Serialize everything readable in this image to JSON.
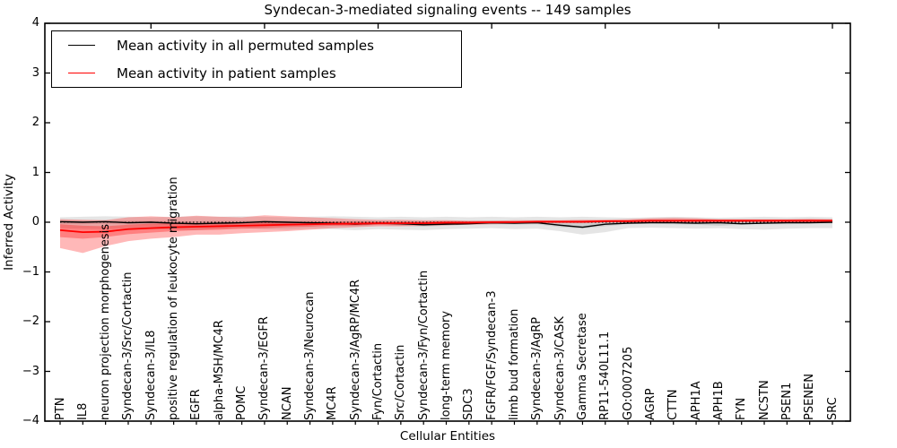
{
  "title": "Syndecan-3-mediated signaling events -- 149 samples",
  "legend": {
    "items": [
      {
        "label": "Mean activity in all permuted samples",
        "color": "#000000"
      },
      {
        "label": "Mean activity in patient samples",
        "color": "#ff0000"
      }
    ]
  },
  "chart_data": {
    "type": "line",
    "title": "Syndecan-3-mediated signaling events -- 149 samples",
    "xlabel": "Cellular Entities",
    "ylabel": "Inferred Activity",
    "ylim": [
      -4,
      4
    ],
    "yticks": [
      4,
      3,
      2,
      1,
      0,
      -1,
      -2,
      -3,
      -4
    ],
    "grid": false,
    "legend_position": "upper left",
    "zero_line": true,
    "colors": {
      "permuted": "#000000",
      "patient": "#ff0000",
      "permuted_band": "rgba(0,0,0,0.10)",
      "patient_band": "rgba(255,0,0,0.28)"
    },
    "categories": [
      "PTN",
      "IL8",
      "neuron projection morphogenesis",
      "Syndecan-3/Src/Cortactin",
      "Syndecan-3/IL8",
      "positive regulation of leukocyte migration",
      "EGFR",
      "alpha-MSH/MC4R",
      "POMC",
      "Syndecan-3/EGFR",
      "NCAN",
      "Syndecan-3/Neurocan",
      "MC4R",
      "Syndecan-3/AgRP/MC4R",
      "Fyn/Cortactin",
      "Src/Cortactin",
      "Syndecan-3/Fyn/Cortactin",
      "long-term memory",
      "SDC3",
      "FGFR/FGF/Syndecan-3",
      "limb bud formation",
      "Syndecan-3/AgRP",
      "Syndecan-3/CASK",
      "Gamma Secretase",
      "RP11-540L11.1",
      "GO:0007205",
      "AGRP",
      "CTTN",
      "APH1A",
      "APH1B",
      "FYN",
      "NCSTN",
      "PSEN1",
      "PSENEN",
      "SRC"
    ],
    "series": [
      {
        "name": "Mean activity in all permuted samples",
        "color": "#000000",
        "values": [
          0.01,
          0.0,
          0.01,
          -0.01,
          0.0,
          -0.02,
          -0.03,
          -0.02,
          -0.01,
          0.01,
          0.0,
          -0.01,
          -0.02,
          -0.04,
          -0.02,
          -0.03,
          -0.05,
          -0.04,
          -0.03,
          -0.01,
          -0.02,
          -0.01,
          -0.06,
          -0.1,
          -0.04,
          -0.02,
          -0.01,
          -0.01,
          -0.02,
          -0.01,
          -0.03,
          -0.02,
          -0.01,
          -0.01,
          0.0
        ]
      },
      {
        "name": "Mean activity in patient samples",
        "color": "#ff0000",
        "values": [
          -0.16,
          -0.2,
          -0.19,
          -0.14,
          -0.12,
          -0.1,
          -0.09,
          -0.08,
          -0.07,
          -0.06,
          -0.05,
          -0.04,
          -0.03,
          -0.03,
          -0.02,
          -0.02,
          -0.02,
          -0.01,
          -0.01,
          0.0,
          0.0,
          0.01,
          0.01,
          0.01,
          0.02,
          0.02,
          0.03,
          0.03,
          0.03,
          0.03,
          0.03,
          0.03,
          0.03,
          0.03,
          0.03
        ]
      }
    ],
    "bands": [
      {
        "name": "permuted-outer",
        "color": "rgba(0,0,0,0.10)",
        "high": [
          0.1,
          0.11,
          0.12,
          0.11,
          0.1,
          0.11,
          0.12,
          0.11,
          0.12,
          0.11,
          0.1,
          0.11,
          0.12,
          0.11,
          0.1,
          0.11,
          0.1,
          0.11,
          0.1,
          0.11,
          0.1,
          0.11,
          0.1,
          0.11,
          0.1,
          0.09,
          0.1,
          0.11,
          0.1,
          0.09,
          0.1,
          0.11,
          0.1,
          0.11,
          0.1
        ],
        "low": [
          -0.12,
          -0.13,
          -0.14,
          -0.12,
          -0.13,
          -0.15,
          -0.16,
          -0.13,
          -0.12,
          -0.14,
          -0.15,
          -0.13,
          -0.14,
          -0.16,
          -0.14,
          -0.15,
          -0.16,
          -0.14,
          -0.13,
          -0.12,
          -0.14,
          -0.13,
          -0.18,
          -0.25,
          -0.2,
          -0.12,
          -0.11,
          -0.12,
          -0.13,
          -0.12,
          -0.14,
          -0.15,
          -0.13,
          -0.12,
          -0.12
        ]
      },
      {
        "name": "permuted-inner",
        "color": "rgba(0,0,0,0.10)",
        "high": [
          0.04,
          0.03,
          0.04,
          0.03,
          0.03,
          0.02,
          0.02,
          0.03,
          0.03,
          0.04,
          0.03,
          0.03,
          0.02,
          0.02,
          0.02,
          0.02,
          0.02,
          0.02,
          0.02,
          0.03,
          0.02,
          0.03,
          0.02,
          0.02,
          0.02,
          0.02,
          0.03,
          0.03,
          0.02,
          0.03,
          0.02,
          0.02,
          0.03,
          0.03,
          0.03
        ],
        "low": [
          -0.03,
          -0.04,
          -0.03,
          -0.04,
          -0.04,
          -0.05,
          -0.06,
          -0.05,
          -0.04,
          -0.03,
          -0.04,
          -0.04,
          -0.06,
          -0.08,
          -0.05,
          -0.07,
          -0.09,
          -0.07,
          -0.05,
          -0.04,
          -0.05,
          -0.04,
          -0.1,
          -0.13,
          -0.08,
          -0.04,
          -0.03,
          -0.04,
          -0.05,
          -0.07,
          -0.05,
          -0.04,
          -0.04,
          -0.03,
          -0.03
        ]
      },
      {
        "name": "patient-outer",
        "color": "rgba(255,0,0,0.28)",
        "high": [
          0.06,
          0.05,
          0.04,
          0.1,
          0.12,
          0.1,
          0.13,
          0.11,
          0.1,
          0.14,
          0.12,
          0.1,
          0.08,
          0.06,
          0.05,
          0.05,
          0.04,
          0.04,
          0.03,
          0.03,
          0.04,
          0.04,
          0.04,
          0.05,
          0.05,
          0.06,
          0.08,
          0.09,
          0.08,
          0.06,
          0.06,
          0.06,
          0.06,
          0.07,
          0.06
        ],
        "low": [
          -0.52,
          -0.62,
          -0.48,
          -0.38,
          -0.33,
          -0.3,
          -0.25,
          -0.25,
          -0.22,
          -0.2,
          -0.18,
          -0.15,
          -0.12,
          -0.1,
          -0.08,
          -0.08,
          -0.07,
          -0.06,
          -0.05,
          -0.04,
          -0.03,
          -0.02,
          -0.02,
          -0.02,
          -0.01,
          -0.01,
          -0.01,
          0.0,
          0.0,
          0.0,
          0.0,
          0.0,
          0.0,
          0.0,
          0.0
        ]
      },
      {
        "name": "patient-inner",
        "color": "rgba(255,0,0,0.30)",
        "high": [
          -0.04,
          -0.07,
          -0.08,
          -0.05,
          -0.03,
          -0.02,
          -0.02,
          -0.01,
          0.0,
          0.0,
          0.01,
          0.01,
          0.01,
          0.01,
          0.01,
          0.01,
          0.01,
          0.02,
          0.02,
          0.02,
          0.02,
          0.03,
          0.03,
          0.03,
          0.04,
          0.04,
          0.05,
          0.05,
          0.05,
          0.05,
          0.05,
          0.05,
          0.05,
          0.05,
          0.05
        ],
        "low": [
          -0.3,
          -0.33,
          -0.3,
          -0.24,
          -0.21,
          -0.18,
          -0.16,
          -0.15,
          -0.13,
          -0.12,
          -0.1,
          -0.09,
          -0.07,
          -0.06,
          -0.05,
          -0.05,
          -0.04,
          -0.04,
          -0.03,
          -0.02,
          -0.02,
          -0.01,
          -0.01,
          -0.01,
          0.0,
          0.0,
          0.01,
          0.01,
          0.01,
          0.01,
          0.01,
          0.01,
          0.01,
          0.01,
          0.01
        ]
      }
    ]
  }
}
